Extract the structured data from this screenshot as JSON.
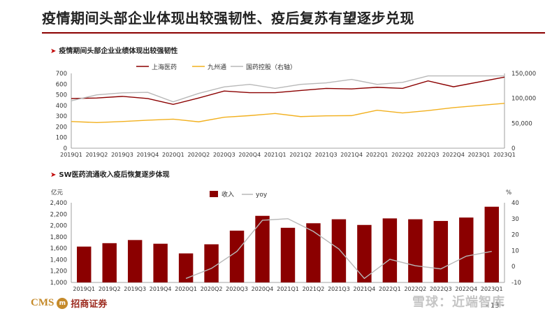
{
  "slide": {
    "title": "疫情期间头部企业体现出较强韧性、疫后复苏有望逐步兑现",
    "page_number": "- 13 -",
    "logo_text": "CMS",
    "logo_badge": "m",
    "logo_cn": "招商证券",
    "watermark": "雪球：近端智库"
  },
  "chart_data": [
    {
      "type": "line",
      "section_title": "疫情期间头部企业业绩体现出较强韧性",
      "categories": [
        "2019Q1",
        "2019Q2",
        "2019Q3",
        "2019Q4",
        "2020Q1",
        "2020Q2",
        "2020Q3",
        "2020Q4",
        "2021Q1",
        "2021Q2",
        "2021Q3",
        "2021Q4",
        "2022Q1",
        "2022Q2",
        "2022Q3",
        "2022Q4",
        "2023Q1"
      ],
      "y_left": {
        "min": 0,
        "max": 700,
        "ticks": [
          "0",
          "100",
          "200",
          "300",
          "400",
          "500",
          "600",
          "700"
        ]
      },
      "y_right": {
        "min": 0,
        "max": 150000,
        "ticks": [
          "0",
          "50,000",
          "100,000",
          "150,000"
        ]
      },
      "legend": {
        "position": "top"
      },
      "series": [
        {
          "name": "上海医药",
          "axis": "left",
          "color": "#8b0000",
          "values": [
            465,
            470,
            485,
            465,
            410,
            470,
            535,
            520,
            520,
            540,
            560,
            555,
            570,
            560,
            630,
            575,
            665
          ]
        },
        {
          "name": "九州通",
          "axis": "left",
          "color": "#f2b01e",
          "values": [
            250,
            240,
            250,
            262,
            272,
            247,
            290,
            305,
            325,
            296,
            303,
            305,
            355,
            330,
            352,
            380,
            420
          ]
        },
        {
          "name": "国药控股（右轴）",
          "axis": "right",
          "color": "#b8b8b8",
          "values": [
            95000,
            107000,
            111000,
            112000,
            93000,
            110000,
            123000,
            128000,
            120000,
            128000,
            131000,
            138000,
            128000,
            132000,
            145000,
            145000,
            145000
          ]
        }
      ]
    },
    {
      "type": "bar",
      "section_title": "SW医药流通收入疫后恢复逐步体现",
      "categories": [
        "2019Q1",
        "2019Q2",
        "2019Q3",
        "2019Q4",
        "2020Q1",
        "2020Q2",
        "2020Q3",
        "2020Q4",
        "2021Q1",
        "2021Q2",
        "2021Q3",
        "2021Q4",
        "2022Q1",
        "2022Q2",
        "2022Q3",
        "2022Q4",
        "2023Q1"
      ],
      "y_left": {
        "label": "亿元",
        "min": 1000,
        "max": 2400,
        "ticks": [
          "1,000",
          "1,200",
          "1,400",
          "1,600",
          "1,800",
          "2,000",
          "2,200",
          "2,400"
        ]
      },
      "y_right": {
        "label": "%",
        "min": -10,
        "max": 40,
        "ticks": [
          "-10",
          "0",
          "10",
          "20",
          "30",
          "40"
        ]
      },
      "legend": {
        "position": "top"
      },
      "series": [
        {
          "name": "收入",
          "axis": "left",
          "type": "bar",
          "color": "#8b0000",
          "values": [
            1630,
            1690,
            1745,
            1680,
            1510,
            1670,
            1910,
            2170,
            1960,
            2040,
            2110,
            2010,
            2125,
            2110,
            2080,
            2140,
            2330
          ]
        },
        {
          "name": "yoy",
          "axis": "right",
          "type": "line",
          "color": "#b8b8b8",
          "values": [
            null,
            null,
            null,
            null,
            -7.5,
            -1.2,
            9.5,
            29,
            30,
            22,
            11,
            -7.5,
            4.5,
            0.5,
            -1.5,
            6.5,
            9.5
          ]
        }
      ]
    }
  ]
}
